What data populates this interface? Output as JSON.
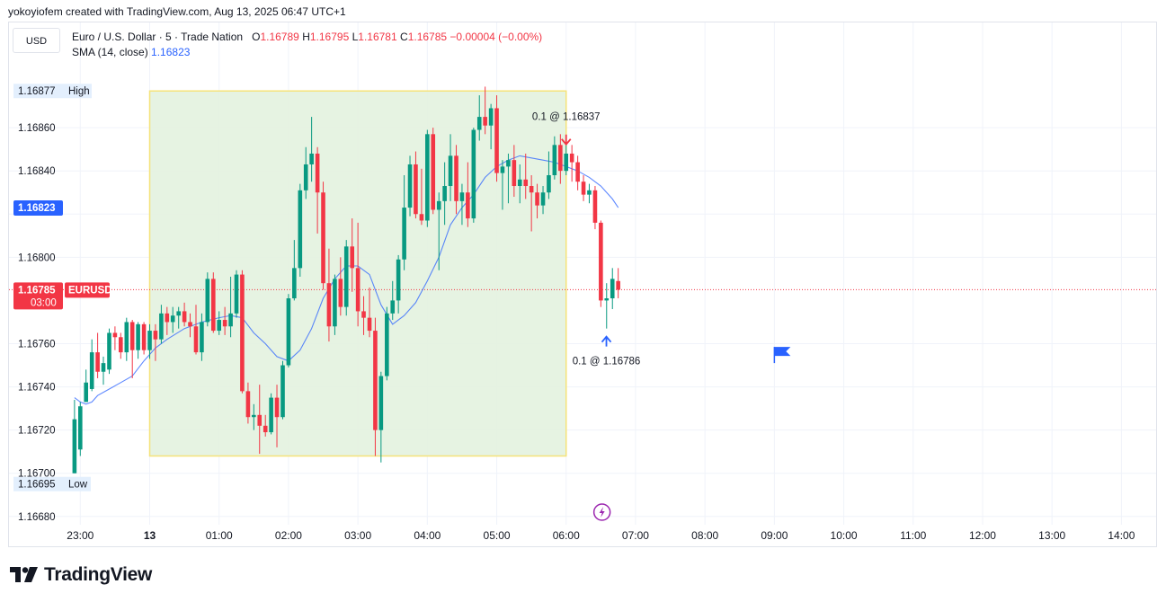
{
  "header": {
    "text": "yokoyiofem created with TradingView.com, Aug 13, 2025 06:47 UTC+1"
  },
  "currency_button": "USD",
  "legend": {
    "symbol": "Euro / U.S. Dollar · 5 · Trade Nation",
    "o_label": "O",
    "o_value": "1.16789",
    "h_label": "H",
    "h_value": "1.16795",
    "l_label": "L",
    "l_value": "1.16781",
    "c_label": "C",
    "c_value": "1.16785",
    "change": "−0.00004 (−0.00%)",
    "sma_label": "SMA (14, close)",
    "sma_value": "1.16823"
  },
  "footer": {
    "brand": "TradingView"
  },
  "colors": {
    "up": "#089981",
    "down": "#f23645",
    "sma": "#2962ff",
    "zone_fill": "#e3f2df",
    "zone_border": "#f5e37a"
  },
  "chart_data": {
    "type": "candlestick",
    "x_tick_labels": [
      "23:00",
      "13",
      "01:00",
      "02:00",
      "03:00",
      "04:00",
      "05:00",
      "06:00",
      "07:00",
      "08:00",
      "09:00",
      "10:00",
      "11:00",
      "12:00",
      "13:00",
      "14:00"
    ],
    "x_tick_values": [
      0,
      1,
      2,
      3,
      4,
      5,
      6,
      7,
      8,
      9,
      10,
      11,
      12,
      13,
      14,
      15
    ],
    "y_tick_labels": [
      "1.16680",
      "1.16700",
      "1.16720",
      "1.16740",
      "1.16760",
      "1.16800",
      "1.16840",
      "1.16860"
    ],
    "y_tick_values": [
      1.1668,
      1.167,
      1.1672,
      1.1674,
      1.1676,
      1.168,
      1.1684,
      1.1686
    ],
    "ylim": [
      1.16677,
      1.1689
    ],
    "xlim": [
      -0.25,
      15.5
    ],
    "grid": true,
    "last_price": {
      "value": 1.16785,
      "label": "1.16785",
      "ticker": "EURUSD",
      "countdown": "03:00"
    },
    "sma_marker": {
      "value": 1.16823,
      "label": "1.16823"
    },
    "high_marker": {
      "value": 1.16877,
      "label": "1.16877",
      "text": "High"
    },
    "low_marker": {
      "value": 1.16695,
      "label": "1.16695",
      "text": "Low"
    },
    "highlight_zone": {
      "x_start": 1.0,
      "x_end": 7.0,
      "y_low": 1.16708,
      "y_high": 1.16877
    },
    "trades": [
      {
        "type": "sell",
        "label": "0.1 @ 1.16837",
        "x": 7.0,
        "price": 1.16851
      },
      {
        "type": "buy",
        "label": "0.1 @ 1.16786",
        "x": 7.58,
        "price": 1.16767
      }
    ],
    "flag": {
      "x": 10.0,
      "price": 1.16756
    },
    "session_icon_x": 7.75,
    "candles": [
      {
        "x": -0.083,
        "o": 1.167,
        "h": 1.16734,
        "l": 1.167,
        "c": 1.16725
      },
      {
        "x": 0.0,
        "o": 1.16711,
        "h": 1.16733,
        "l": 1.16708,
        "c": 1.16731
      },
      {
        "x": 0.083,
        "o": 1.16733,
        "h": 1.16748,
        "l": 1.16733,
        "c": 1.16742
      },
      {
        "x": 0.167,
        "o": 1.16739,
        "h": 1.16762,
        "l": 1.16738,
        "c": 1.16756
      },
      {
        "x": 0.25,
        "o": 1.16756,
        "h": 1.16765,
        "l": 1.16744,
        "c": 1.16747
      },
      {
        "x": 0.333,
        "o": 1.16747,
        "h": 1.16754,
        "l": 1.16741,
        "c": 1.16751
      },
      {
        "x": 0.417,
        "o": 1.16748,
        "h": 1.16767,
        "l": 1.16746,
        "c": 1.16765
      },
      {
        "x": 0.5,
        "o": 1.16765,
        "h": 1.16768,
        "l": 1.16757,
        "c": 1.16763
      },
      {
        "x": 0.583,
        "o": 1.16763,
        "h": 1.16765,
        "l": 1.16753,
        "c": 1.16756
      },
      {
        "x": 0.667,
        "o": 1.16756,
        "h": 1.16772,
        "l": 1.16752,
        "c": 1.1677
      },
      {
        "x": 0.75,
        "o": 1.1677,
        "h": 1.16771,
        "l": 1.16744,
        "c": 1.16757
      },
      {
        "x": 0.833,
        "o": 1.16757,
        "h": 1.1677,
        "l": 1.16753,
        "c": 1.16769
      },
      {
        "x": 0.917,
        "o": 1.16769,
        "h": 1.1677,
        "l": 1.16755,
        "c": 1.16757
      },
      {
        "x": 1.0,
        "o": 1.16757,
        "h": 1.16769,
        "l": 1.16753,
        "c": 1.16766
      },
      {
        "x": 1.083,
        "o": 1.16766,
        "h": 1.16769,
        "l": 1.16752,
        "c": 1.16762
      },
      {
        "x": 1.167,
        "o": 1.16762,
        "h": 1.16778,
        "l": 1.1676,
        "c": 1.16774
      },
      {
        "x": 1.25,
        "o": 1.16774,
        "h": 1.16777,
        "l": 1.16764,
        "c": 1.1677
      },
      {
        "x": 1.333,
        "o": 1.1677,
        "h": 1.16777,
        "l": 1.16765,
        "c": 1.16773
      },
      {
        "x": 1.417,
        "o": 1.16773,
        "h": 1.16777,
        "l": 1.16767,
        "c": 1.16775
      },
      {
        "x": 1.5,
        "o": 1.16775,
        "h": 1.16779,
        "l": 1.16768,
        "c": 1.1677
      },
      {
        "x": 1.583,
        "o": 1.1677,
        "h": 1.16774,
        "l": 1.16763,
        "c": 1.16768
      },
      {
        "x": 1.667,
        "o": 1.16768,
        "h": 1.16778,
        "l": 1.16755,
        "c": 1.16756
      },
      {
        "x": 1.75,
        "o": 1.16756,
        "h": 1.16774,
        "l": 1.16752,
        "c": 1.1677
      },
      {
        "x": 1.833,
        "o": 1.1677,
        "h": 1.16793,
        "l": 1.16768,
        "c": 1.1679
      },
      {
        "x": 1.917,
        "o": 1.1679,
        "h": 1.16793,
        "l": 1.16765,
        "c": 1.16766
      },
      {
        "x": 2.0,
        "o": 1.16766,
        "h": 1.16775,
        "l": 1.16764,
        "c": 1.16771
      },
      {
        "x": 2.083,
        "o": 1.16771,
        "h": 1.16777,
        "l": 1.16764,
        "c": 1.16768
      },
      {
        "x": 2.167,
        "o": 1.16768,
        "h": 1.16791,
        "l": 1.16763,
        "c": 1.16774
      },
      {
        "x": 2.25,
        "o": 1.16774,
        "h": 1.16794,
        "l": 1.16772,
        "c": 1.16792
      },
      {
        "x": 2.333,
        "o": 1.16792,
        "h": 1.16794,
        "l": 1.16737,
        "c": 1.16738
      },
      {
        "x": 2.417,
        "o": 1.16738,
        "h": 1.16742,
        "l": 1.16723,
        "c": 1.16726
      },
      {
        "x": 2.5,
        "o": 1.16726,
        "h": 1.16732,
        "l": 1.1672,
        "c": 1.16727
      },
      {
        "x": 2.583,
        "o": 1.16727,
        "h": 1.16741,
        "l": 1.16709,
        "c": 1.16722
      },
      {
        "x": 2.667,
        "o": 1.16722,
        "h": 1.16727,
        "l": 1.16717,
        "c": 1.16719
      },
      {
        "x": 2.75,
        "o": 1.16719,
        "h": 1.16737,
        "l": 1.16718,
        "c": 1.16735
      },
      {
        "x": 2.833,
        "o": 1.16735,
        "h": 1.16741,
        "l": 1.16712,
        "c": 1.16726
      },
      {
        "x": 2.917,
        "o": 1.16726,
        "h": 1.16752,
        "l": 1.16725,
        "c": 1.1675
      },
      {
        "x": 3.0,
        "o": 1.1675,
        "h": 1.16783,
        "l": 1.16749,
        "c": 1.16781
      },
      {
        "x": 3.083,
        "o": 1.16781,
        "h": 1.16808,
        "l": 1.1678,
        "c": 1.16795
      },
      {
        "x": 3.167,
        "o": 1.16795,
        "h": 1.16834,
        "l": 1.16791,
        "c": 1.16831
      },
      {
        "x": 3.25,
        "o": 1.16831,
        "h": 1.16851,
        "l": 1.16827,
        "c": 1.16843
      },
      {
        "x": 3.333,
        "o": 1.16843,
        "h": 1.16865,
        "l": 1.16835,
        "c": 1.16848
      },
      {
        "x": 3.417,
        "o": 1.16848,
        "h": 1.16851,
        "l": 1.16811,
        "c": 1.1683
      },
      {
        "x": 3.5,
        "o": 1.1683,
        "h": 1.16835,
        "l": 1.16785,
        "c": 1.16788
      },
      {
        "x": 3.583,
        "o": 1.16788,
        "h": 1.16804,
        "l": 1.16761,
        "c": 1.16768
      },
      {
        "x": 3.667,
        "o": 1.16768,
        "h": 1.16792,
        "l": 1.16764,
        "c": 1.1679
      },
      {
        "x": 3.75,
        "o": 1.1679,
        "h": 1.168,
        "l": 1.16773,
        "c": 1.16777
      },
      {
        "x": 3.833,
        "o": 1.16777,
        "h": 1.16808,
        "l": 1.16773,
        "c": 1.16805
      },
      {
        "x": 3.917,
        "o": 1.16805,
        "h": 1.16818,
        "l": 1.16784,
        "c": 1.16795
      },
      {
        "x": 4.0,
        "o": 1.16795,
        "h": 1.16816,
        "l": 1.16768,
        "c": 1.16775
      },
      {
        "x": 4.083,
        "o": 1.16775,
        "h": 1.16782,
        "l": 1.16764,
        "c": 1.16772
      },
      {
        "x": 4.167,
        "o": 1.16772,
        "h": 1.16786,
        "l": 1.16763,
        "c": 1.16766
      },
      {
        "x": 4.25,
        "o": 1.16766,
        "h": 1.16772,
        "l": 1.16708,
        "c": 1.1672
      },
      {
        "x": 4.333,
        "o": 1.1672,
        "h": 1.16747,
        "l": 1.16705,
        "c": 1.16745
      },
      {
        "x": 4.417,
        "o": 1.16745,
        "h": 1.16777,
        "l": 1.16743,
        "c": 1.16774
      },
      {
        "x": 4.5,
        "o": 1.16774,
        "h": 1.16789,
        "l": 1.16771,
        "c": 1.1678
      },
      {
        "x": 4.583,
        "o": 1.1678,
        "h": 1.16801,
        "l": 1.16774,
        "c": 1.16799
      },
      {
        "x": 4.667,
        "o": 1.16799,
        "h": 1.16838,
        "l": 1.16794,
        "c": 1.16823
      },
      {
        "x": 4.75,
        "o": 1.16823,
        "h": 1.16847,
        "l": 1.16819,
        "c": 1.16843
      },
      {
        "x": 4.833,
        "o": 1.16843,
        "h": 1.16849,
        "l": 1.16818,
        "c": 1.1682
      },
      {
        "x": 4.917,
        "o": 1.1682,
        "h": 1.16841,
        "l": 1.16815,
        "c": 1.16817
      },
      {
        "x": 5.0,
        "o": 1.16817,
        "h": 1.16859,
        "l": 1.16814,
        "c": 1.16857
      },
      {
        "x": 5.083,
        "o": 1.16857,
        "h": 1.1686,
        "l": 1.1682,
        "c": 1.16822
      },
      {
        "x": 5.167,
        "o": 1.16822,
        "h": 1.1683,
        "l": 1.16794,
        "c": 1.16826
      },
      {
        "x": 5.25,
        "o": 1.16826,
        "h": 1.16844,
        "l": 1.16815,
        "c": 1.16833
      },
      {
        "x": 5.333,
        "o": 1.16833,
        "h": 1.16857,
        "l": 1.16826,
        "c": 1.16847
      },
      {
        "x": 5.417,
        "o": 1.16847,
        "h": 1.16852,
        "l": 1.1682,
        "c": 1.16826
      },
      {
        "x": 5.5,
        "o": 1.16826,
        "h": 1.16834,
        "l": 1.16815,
        "c": 1.1683
      },
      {
        "x": 5.583,
        "o": 1.1683,
        "h": 1.16844,
        "l": 1.16814,
        "c": 1.16818
      },
      {
        "x": 5.667,
        "o": 1.16818,
        "h": 1.1686,
        "l": 1.16816,
        "c": 1.16859
      },
      {
        "x": 5.75,
        "o": 1.16859,
        "h": 1.16875,
        "l": 1.16854,
        "c": 1.16865
      },
      {
        "x": 5.833,
        "o": 1.16865,
        "h": 1.16879,
        "l": 1.16857,
        "c": 1.16861
      },
      {
        "x": 5.917,
        "o": 1.16861,
        "h": 1.16871,
        "l": 1.1685,
        "c": 1.16869
      },
      {
        "x": 6.0,
        "o": 1.16869,
        "h": 1.16875,
        "l": 1.16835,
        "c": 1.16839
      },
      {
        "x": 6.083,
        "o": 1.16839,
        "h": 1.16845,
        "l": 1.16822,
        "c": 1.16842
      },
      {
        "x": 6.167,
        "o": 1.16842,
        "h": 1.16848,
        "l": 1.16825,
        "c": 1.16845
      },
      {
        "x": 6.25,
        "o": 1.16845,
        "h": 1.16852,
        "l": 1.16828,
        "c": 1.16833
      },
      {
        "x": 6.333,
        "o": 1.16833,
        "h": 1.16843,
        "l": 1.16825,
        "c": 1.16836
      },
      {
        "x": 6.417,
        "o": 1.16836,
        "h": 1.16848,
        "l": 1.16827,
        "c": 1.16833
      },
      {
        "x": 6.5,
        "o": 1.16833,
        "h": 1.16838,
        "l": 1.16812,
        "c": 1.1683
      },
      {
        "x": 6.583,
        "o": 1.1683,
        "h": 1.16834,
        "l": 1.16818,
        "c": 1.16824
      },
      {
        "x": 6.667,
        "o": 1.16824,
        "h": 1.16833,
        "l": 1.1682,
        "c": 1.1683
      },
      {
        "x": 6.75,
        "o": 1.1683,
        "h": 1.16849,
        "l": 1.16827,
        "c": 1.16838
      },
      {
        "x": 6.833,
        "o": 1.16838,
        "h": 1.16856,
        "l": 1.16836,
        "c": 1.16852
      },
      {
        "x": 6.917,
        "o": 1.16852,
        "h": 1.16857,
        "l": 1.16834,
        "c": 1.1684
      },
      {
        "x": 7.0,
        "o": 1.1684,
        "h": 1.16852,
        "l": 1.16838,
        "c": 1.16848
      },
      {
        "x": 7.083,
        "o": 1.16848,
        "h": 1.16852,
        "l": 1.16835,
        "c": 1.16844
      },
      {
        "x": 7.167,
        "o": 1.16844,
        "h": 1.16847,
        "l": 1.16831,
        "c": 1.16835
      },
      {
        "x": 7.25,
        "o": 1.16835,
        "h": 1.16838,
        "l": 1.16826,
        "c": 1.16829
      },
      {
        "x": 7.333,
        "o": 1.16829,
        "h": 1.16834,
        "l": 1.16825,
        "c": 1.16831
      },
      {
        "x": 7.417,
        "o": 1.16831,
        "h": 1.16833,
        "l": 1.16813,
        "c": 1.16816
      },
      {
        "x": 7.5,
        "o": 1.16816,
        "h": 1.16817,
        "l": 1.16777,
        "c": 1.1678
      },
      {
        "x": 7.583,
        "o": 1.1678,
        "h": 1.16788,
        "l": 1.16767,
        "c": 1.16781
      },
      {
        "x": 7.667,
        "o": 1.16781,
        "h": 1.16795,
        "l": 1.16776,
        "c": 1.1679
      },
      {
        "x": 7.75,
        "o": 1.16789,
        "h": 1.16795,
        "l": 1.16781,
        "c": 1.16785
      }
    ],
    "sma_line": [
      {
        "x": -0.083,
        "y": 1.16735
      },
      {
        "x": 0.0,
        "y": 1.16733
      },
      {
        "x": 0.083,
        "y": 1.16732
      },
      {
        "x": 0.167,
        "y": 1.16733
      },
      {
        "x": 0.25,
        "y": 1.16736
      },
      {
        "x": 0.417,
        "y": 1.16739
      },
      {
        "x": 0.583,
        "y": 1.16742
      },
      {
        "x": 0.75,
        "y": 1.16745
      },
      {
        "x": 0.917,
        "y": 1.16752
      },
      {
        "x": 1.083,
        "y": 1.16758
      },
      {
        "x": 1.25,
        "y": 1.16762
      },
      {
        "x": 1.5,
        "y": 1.16767
      },
      {
        "x": 1.75,
        "y": 1.1677
      },
      {
        "x": 2.0,
        "y": 1.16772
      },
      {
        "x": 2.167,
        "y": 1.16773
      },
      {
        "x": 2.333,
        "y": 1.16772
      },
      {
        "x": 2.5,
        "y": 1.16765
      },
      {
        "x": 2.667,
        "y": 1.1676
      },
      {
        "x": 2.833,
        "y": 1.16754
      },
      {
        "x": 3.0,
        "y": 1.16752
      },
      {
        "x": 3.167,
        "y": 1.16757
      },
      {
        "x": 3.333,
        "y": 1.16767
      },
      {
        "x": 3.5,
        "y": 1.16781
      },
      {
        "x": 3.667,
        "y": 1.1679
      },
      {
        "x": 3.833,
        "y": 1.16796
      },
      {
        "x": 4.0,
        "y": 1.16796
      },
      {
        "x": 4.167,
        "y": 1.16792
      },
      {
        "x": 4.333,
        "y": 1.16778
      },
      {
        "x": 4.5,
        "y": 1.16769
      },
      {
        "x": 4.667,
        "y": 1.16773
      },
      {
        "x": 4.833,
        "y": 1.16779
      },
      {
        "x": 5.0,
        "y": 1.16789
      },
      {
        "x": 5.167,
        "y": 1.168
      },
      {
        "x": 5.333,
        "y": 1.16815
      },
      {
        "x": 5.5,
        "y": 1.16823
      },
      {
        "x": 5.667,
        "y": 1.16829
      },
      {
        "x": 5.833,
        "y": 1.16837
      },
      {
        "x": 6.0,
        "y": 1.16842
      },
      {
        "x": 6.167,
        "y": 1.16845
      },
      {
        "x": 6.333,
        "y": 1.16847
      },
      {
        "x": 6.5,
        "y": 1.16846
      },
      {
        "x": 6.667,
        "y": 1.16845
      },
      {
        "x": 6.833,
        "y": 1.16844
      },
      {
        "x": 7.0,
        "y": 1.16842
      },
      {
        "x": 7.167,
        "y": 1.1684
      },
      {
        "x": 7.333,
        "y": 1.16837
      },
      {
        "x": 7.5,
        "y": 1.16833
      },
      {
        "x": 7.667,
        "y": 1.16827
      },
      {
        "x": 7.75,
        "y": 1.16823
      }
    ]
  }
}
